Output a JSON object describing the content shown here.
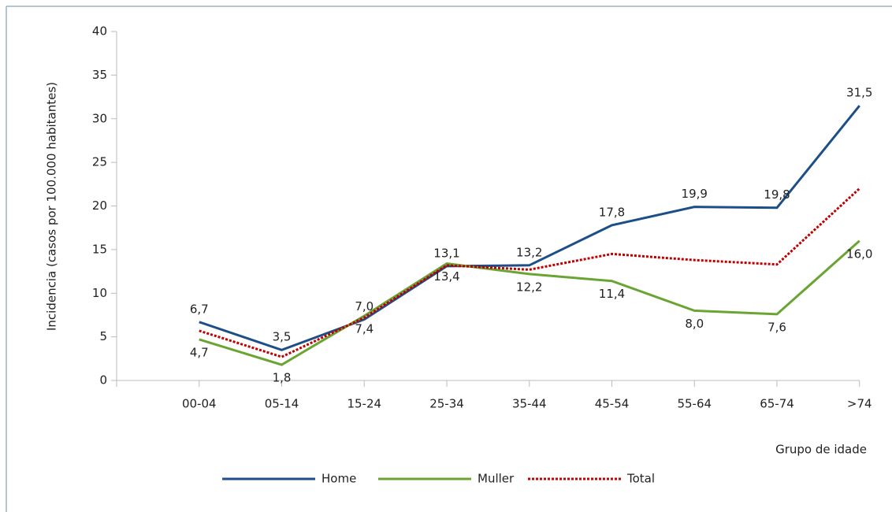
{
  "chart_data": {
    "type": "line",
    "y_label": "Incidencia (casos por 100.000 habitantes)",
    "x_label": "Grupo de idade",
    "categories": [
      null,
      "00-04",
      "05-14",
      "15-24",
      "25-34",
      "35-44",
      "45-54",
      "55-64",
      "65-74",
      ">74"
    ],
    "series": [
      {
        "name": "Home",
        "color": "#1c4f87",
        "dash": false,
        "values": [
          null,
          6.7,
          3.5,
          7.0,
          13.1,
          13.2,
          17.8,
          19.9,
          19.8,
          31.5
        ],
        "value_labels": [
          null,
          "6,7",
          "3,5",
          "7,0",
          "13,1",
          "13,2",
          "17,8",
          "19,9",
          "19,8",
          "31,5"
        ],
        "label_position": "above"
      },
      {
        "name": "Muller",
        "color": "#6aa533",
        "dash": false,
        "values": [
          null,
          4.7,
          1.8,
          7.4,
          13.4,
          12.2,
          11.4,
          8.0,
          7.6,
          16.0
        ],
        "value_labels": [
          null,
          "4,7",
          "1,8",
          "7,4",
          "13,4",
          "12,2",
          "11,4",
          "8,0",
          "7,6",
          "16,0"
        ],
        "label_position": "below"
      },
      {
        "name": "Total",
        "color": "#c00000",
        "dash": true,
        "values": [
          null,
          5.7,
          2.7,
          7.2,
          13.2,
          12.7,
          14.5,
          13.8,
          13.3,
          22.0
        ]
      }
    ],
    "ylim": [
      0,
      40
    ],
    "yticks": [
      0,
      5,
      10,
      15,
      20,
      25,
      30,
      35,
      40
    ],
    "grid": false,
    "legend": "bottom"
  }
}
